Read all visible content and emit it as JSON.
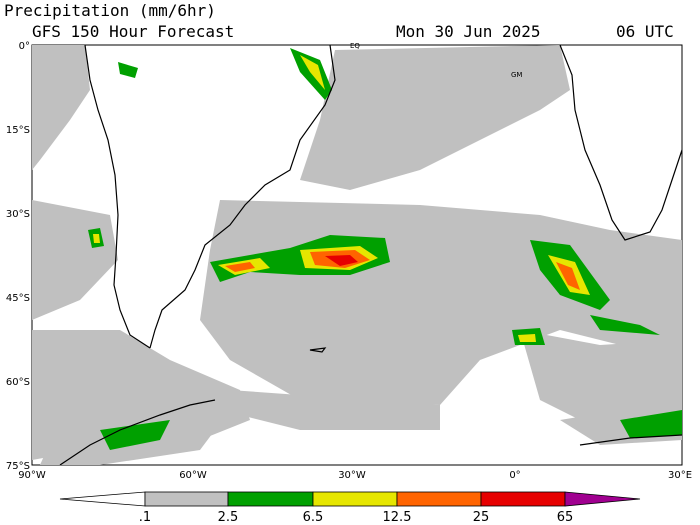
{
  "header": {
    "title": "Precipitation (mm/6hr)",
    "subtitle": "GFS 150 Hour Forecast",
    "date": "Mon 30 Jun 2025",
    "time": "06 UTC"
  },
  "map": {
    "lat_labels": [
      "0°",
      "15°S",
      "30°S",
      "45°S",
      "60°S",
      "75°S"
    ],
    "lon_labels": [
      "90°W",
      "60°W",
      "30°W",
      "0°",
      "30°E"
    ],
    "place_labels": [
      "EQ",
      "GM"
    ]
  },
  "colorbar": {
    "labels": [
      ".1",
      "2.5",
      "6.5",
      "12.5",
      "25",
      "65"
    ]
  }
}
